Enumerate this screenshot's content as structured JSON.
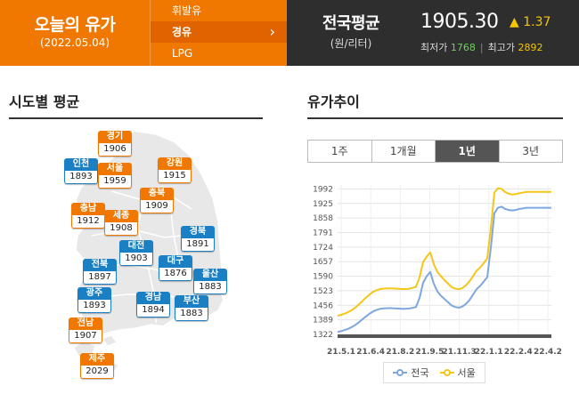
{
  "header": {
    "title": "오늘의 유가",
    "date": "(2022.05.04)",
    "fuel_tabs": [
      {
        "label": "휘발유",
        "selected": false
      },
      {
        "label": "경유",
        "selected": true
      },
      {
        "label": "LPG",
        "selected": false
      }
    ],
    "chevron": "›",
    "national_avg_label": "전국평균",
    "unit": "(원/리터)",
    "price": "1905.30",
    "change": "▲ 1.37",
    "min_label": "최저가",
    "min_value": "1768",
    "max_label": "최고가",
    "max_value": "2892",
    "colors": {
      "orange": "#f07800",
      "dark": "#2e2e2e",
      "up": "#f5c500",
      "min": "#6ed05a"
    }
  },
  "regional": {
    "title": "시도별 평균",
    "regions": [
      {
        "name": "경기",
        "value": "1906",
        "color": "orange"
      },
      {
        "name": "인천",
        "value": "1893",
        "color": "blue"
      },
      {
        "name": "서울",
        "value": "1959",
        "color": "orange"
      },
      {
        "name": "강원",
        "value": "1915",
        "color": "orange"
      },
      {
        "name": "충북",
        "value": "1909",
        "color": "orange"
      },
      {
        "name": "충남",
        "value": "1912",
        "color": "orange"
      },
      {
        "name": "세종",
        "value": "1908",
        "color": "orange"
      },
      {
        "name": "대전",
        "value": "1903",
        "color": "blue"
      },
      {
        "name": "경북",
        "value": "1891",
        "color": "blue"
      },
      {
        "name": "전북",
        "value": "1897",
        "color": "blue"
      },
      {
        "name": "대구",
        "value": "1876",
        "color": "blue"
      },
      {
        "name": "울산",
        "value": "1883",
        "color": "blue"
      },
      {
        "name": "광주",
        "value": "1893",
        "color": "blue"
      },
      {
        "name": "경남",
        "value": "1894",
        "color": "blue"
      },
      {
        "name": "부산",
        "value": "1883",
        "color": "blue"
      },
      {
        "name": "전남",
        "value": "1907",
        "color": "orange"
      },
      {
        "name": "제주",
        "value": "2029",
        "color": "orange"
      }
    ]
  },
  "trend": {
    "title": "유가추이",
    "period_tabs": [
      {
        "label": "1주",
        "selected": false
      },
      {
        "label": "1개월",
        "selected": false
      },
      {
        "label": "1년",
        "selected": true
      },
      {
        "label": "3년",
        "selected": false
      }
    ]
  },
  "chart_data": {
    "type": "line",
    "title": "",
    "xlabel": "",
    "ylabel": "",
    "x_ticks": [
      "21.5.1",
      "21.6.4",
      "21.8.2",
      "21.9.5",
      "21.11.3",
      "22.1.1",
      "22.2.4",
      "22.4.2"
    ],
    "y_ticks": [
      1322,
      1389,
      1456,
      1523,
      1590,
      1657,
      1724,
      1791,
      1858,
      1925,
      1992
    ],
    "ylim": [
      1322,
      2010
    ],
    "grid": true,
    "legend": "bottom",
    "x": [
      0,
      4,
      8,
      12,
      16,
      20,
      24,
      28,
      32,
      36,
      40,
      44,
      48,
      52,
      56,
      60,
      64,
      68,
      72,
      76,
      80,
      84,
      88,
      92,
      96,
      100,
      104,
      108,
      112,
      116,
      120,
      124,
      128,
      132,
      136,
      140,
      144,
      148,
      152,
      156,
      160,
      164,
      168,
      172,
      176,
      180,
      184,
      188,
      192,
      196,
      200,
      204,
      208,
      212,
      216,
      220,
      224,
      228,
      232,
      236,
      240
    ],
    "series": [
      {
        "name": "전국",
        "color": "#7ea6df",
        "values": [
          1333,
          1337,
          1342,
          1348,
          1356,
          1366,
          1378,
          1392,
          1405,
          1418,
          1428,
          1435,
          1440,
          1442,
          1443,
          1443,
          1442,
          1441,
          1440,
          1440,
          1441,
          1444,
          1448,
          1490,
          1560,
          1590,
          1610,
          1555,
          1520,
          1500,
          1485,
          1470,
          1455,
          1448,
          1445,
          1450,
          1462,
          1480,
          1505,
          1530,
          1545,
          1565,
          1585,
          1720,
          1880,
          1905,
          1910,
          1900,
          1895,
          1893,
          1895,
          1900,
          1902,
          1905,
          1905,
          1905,
          1905,
          1905,
          1905,
          1905,
          1905
        ]
      },
      {
        "name": "서울",
        "color": "#f5c518",
        "values": [
          1408,
          1412,
          1418,
          1425,
          1434,
          1446,
          1460,
          1476,
          1492,
          1506,
          1518,
          1526,
          1531,
          1533,
          1534,
          1534,
          1533,
          1532,
          1531,
          1531,
          1532,
          1536,
          1541,
          1585,
          1655,
          1680,
          1700,
          1645,
          1610,
          1590,
          1572,
          1556,
          1540,
          1533,
          1530,
          1535,
          1548,
          1566,
          1590,
          1615,
          1630,
          1650,
          1672,
          1810,
          1975,
          1995,
          1992,
          1978,
          1970,
          1966,
          1968,
          1972,
          1975,
          1978,
          1978,
          1978,
          1978,
          1978,
          1978,
          1978,
          1978
        ]
      }
    ]
  }
}
